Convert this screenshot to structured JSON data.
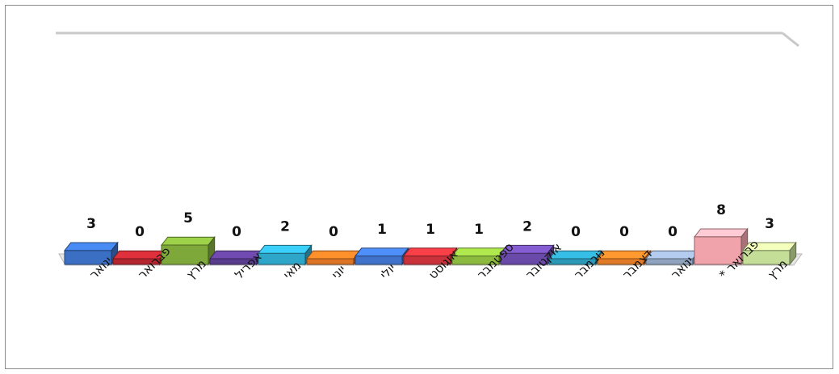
{
  "chart_data": {
    "type": "bar",
    "style": "3d-columns",
    "categories": [
      "ינואר",
      "פברואר",
      "מרץ",
      "אפריל",
      "מאי",
      "יוני",
      "יולי",
      "אוגוסט",
      "ספטמבר",
      "אוקטובר",
      "נובמבר",
      "דצמבר",
      "ינואר",
      "פברואר *",
      "מרץ"
    ],
    "values": [
      3,
      0,
      5,
      0,
      2,
      0,
      1,
      1,
      1,
      2,
      0,
      0,
      0,
      8,
      3
    ],
    "colors": [
      "#3a6fc4",
      "#b3262f",
      "#7ea83a",
      "#5a3c8e",
      "#2ea6c9",
      "#dc7424",
      "#3f72c8",
      "#c9323a",
      "#8cba3e",
      "#6a4aa8",
      "#2c98b8",
      "#e07a26",
      "#8fa3bf",
      "#f0a3ab",
      "#c4dd97"
    ],
    "ylim": [
      0,
      30
    ],
    "grid": false,
    "legend": "none"
  }
}
